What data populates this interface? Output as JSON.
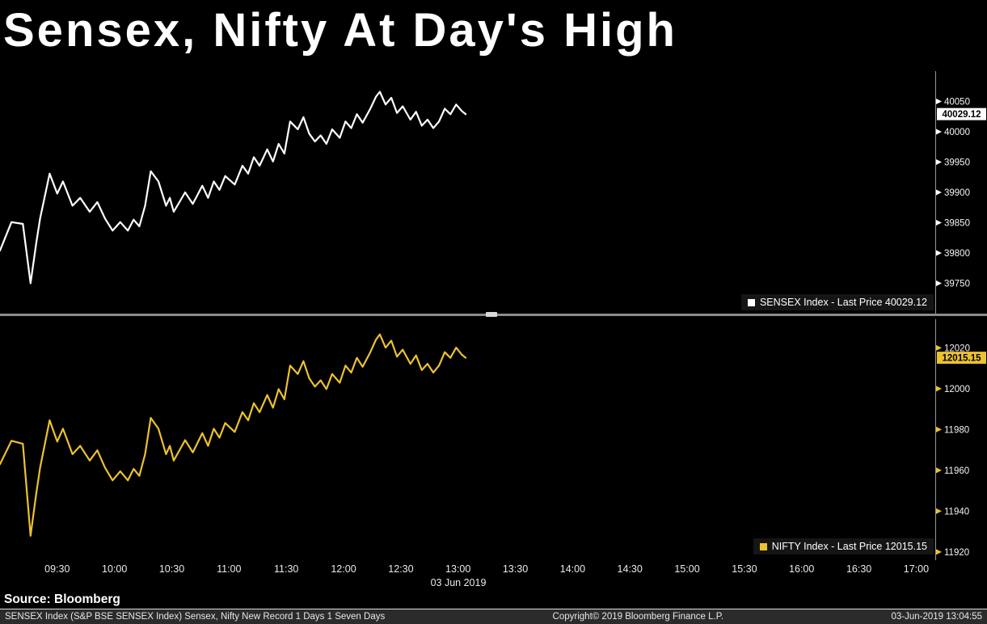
{
  "title": "Sensex, Nifty At Day's High",
  "source_label": "Source: Bloomberg",
  "status_bar": {
    "left": "SENSEX Index (S&P BSE SENSEX Index) Sensex, Nifty New Record 1 Days 1 Seven Days",
    "center": "Copyright© 2019 Bloomberg Finance L.P.",
    "right": "03-Jun-2019 13:04:55"
  },
  "x_axis": {
    "date_label": "03 Jun 2019",
    "start_time": "09:00",
    "labels": [
      "09:30",
      "10:00",
      "10:30",
      "11:00",
      "11:30",
      "12:00",
      "12:30",
      "13:00",
      "13:30",
      "14:00",
      "14:30",
      "15:00",
      "15:30",
      "16:00",
      "16:30",
      "17:00"
    ],
    "tick_minutes": [
      30,
      60,
      90,
      120,
      150,
      180,
      210,
      240,
      270,
      300,
      330,
      360,
      390,
      420,
      450,
      480
    ],
    "domain_minutes": [
      0,
      490
    ]
  },
  "chart_data": [
    {
      "type": "line",
      "name": "SENSEX Index",
      "legend_label": "SENSEX Index - Last Price 40029.12",
      "color": "#ffffff",
      "label_bg": "#ffffff",
      "tick_color": "#ffffff",
      "last_price": "40029.12",
      "last_value": 40029.12,
      "ylim": [
        39700,
        40100
      ],
      "yticks": [
        40050,
        40000,
        39950,
        39900,
        39850,
        39800,
        39750
      ],
      "x_minutes": [
        0,
        6,
        12,
        16,
        19,
        21,
        26,
        30,
        33,
        38,
        42,
        47,
        51,
        55,
        59,
        63,
        67,
        70,
        73,
        76,
        79,
        83,
        87,
        89,
        91,
        94,
        97,
        101,
        106,
        109,
        112,
        115,
        118,
        123,
        127,
        130,
        133,
        136,
        140,
        143,
        146,
        149,
        152,
        156,
        159,
        162,
        165,
        168,
        171,
        174,
        178,
        181,
        184,
        187,
        190,
        194,
        197,
        199,
        202,
        205,
        208,
        211,
        215,
        218,
        221,
        224,
        227,
        230,
        233,
        236,
        239,
        242,
        244
      ],
      "values": [
        39804,
        39851,
        39848,
        39750,
        39817,
        39857,
        39931,
        39898,
        39918,
        39878,
        39891,
        39868,
        39884,
        39857,
        39837,
        39851,
        39837,
        39855,
        39844,
        39878,
        39935,
        39918,
        39878,
        39891,
        39868,
        39884,
        39900,
        39881,
        39911,
        39891,
        39918,
        39904,
        39927,
        39913,
        39944,
        39931,
        39958,
        39944,
        39971,
        39951,
        39980,
        39964,
        40017,
        40004,
        40024,
        39997,
        39984,
        39994,
        39980,
        40004,
        39990,
        40017,
        40006,
        40029,
        40015,
        40038,
        40058,
        40066,
        40045,
        40056,
        40031,
        40042,
        40020,
        40033,
        40010,
        40020,
        40006,
        40017,
        40038,
        40029,
        40045,
        40034,
        40029.12
      ]
    },
    {
      "type": "line",
      "name": "NIFTY Index",
      "legend_label": "NIFTY Index - Last Price 12015.15",
      "color": "#ecc22f",
      "label_bg": "#ecc22f",
      "tick_color": "#ecc22f",
      "last_price": "12015.15",
      "last_value": 12015.15,
      "ylim": [
        11916,
        12034
      ],
      "yticks": [
        12020,
        12000,
        11980,
        11960,
        11940,
        11920
      ],
      "x_minutes": [
        0,
        6,
        12,
        16,
        19,
        21,
        26,
        30,
        33,
        38,
        42,
        47,
        51,
        55,
        59,
        63,
        67,
        70,
        73,
        76,
        79,
        83,
        87,
        89,
        91,
        94,
        97,
        101,
        106,
        109,
        112,
        115,
        118,
        123,
        127,
        130,
        133,
        136,
        140,
        143,
        146,
        149,
        152,
        156,
        159,
        162,
        165,
        168,
        171,
        174,
        178,
        181,
        184,
        187,
        190,
        194,
        197,
        199,
        202,
        205,
        208,
        211,
        215,
        218,
        221,
        224,
        227,
        230,
        233,
        236,
        239,
        242,
        244
      ],
      "values": [
        11963,
        11974.5,
        11973,
        11927.9,
        11948.8,
        11961.3,
        11984.5,
        11974.1,
        11980.4,
        11967.9,
        11972,
        11964.8,
        11969.8,
        11961.3,
        11955.1,
        11959.5,
        11955.1,
        11960.7,
        11957.3,
        11967.9,
        11985.7,
        11980.4,
        11967.9,
        11972,
        11964.8,
        11969.8,
        11974.8,
        11968.8,
        11978.2,
        11972,
        11980.4,
        11976,
        11983.2,
        11978.8,
        11988.5,
        11984.5,
        11992.9,
        11988.5,
        11996.9,
        11990.7,
        11999.8,
        11994.8,
        12011.3,
        12007.2,
        12013.5,
        12005.1,
        12001,
        12004.1,
        11999.8,
        12007.2,
        12002.9,
        12011.3,
        12007.9,
        12015.1,
        12010.7,
        12017.9,
        12024.1,
        12026.6,
        12020.1,
        12023.5,
        12015.7,
        12019.1,
        12012.2,
        12016.3,
        12009.1,
        12012.2,
        12007.9,
        12011.3,
        12017.9,
        12015.1,
        12020.1,
        12016.6,
        12015.15
      ]
    }
  ]
}
